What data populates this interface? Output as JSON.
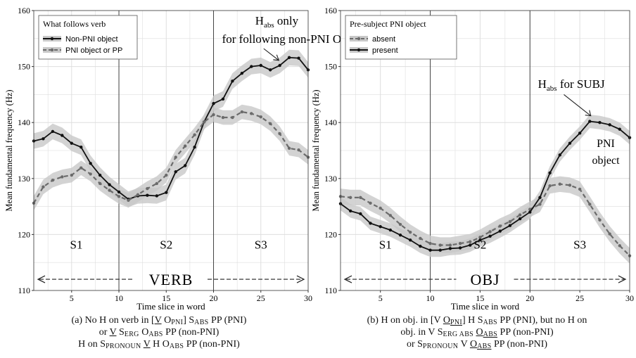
{
  "panels": [
    {
      "id": "a",
      "legend_title": "What follows verb",
      "region_labels": [
        "S1",
        "S2",
        "S3"
      ],
      "word_label": "VERB",
      "annotation": {
        "base": "H",
        "sub": "abs",
        "rest": " only",
        "line2": "for following non-PNI OBJ"
      },
      "caption": [
        [
          {
            "t": "(a) No H on verb in ["
          },
          {
            "t": "V",
            "u": true
          },
          {
            "t": " O"
          },
          {
            "t": "PNI",
            "sc": true,
            "sub": true
          },
          {
            "t": "] S"
          },
          {
            "t": "ABS",
            "sc": true,
            "sub": true
          },
          {
            "t": " PP (PNI)"
          }
        ],
        [
          {
            "t": "or "
          },
          {
            "t": "V",
            "u": true
          },
          {
            "t": " S"
          },
          {
            "t": "ERG",
            "sc": true,
            "sub": true
          },
          {
            "t": " O"
          },
          {
            "t": "ABS",
            "sc": true,
            "sub": true
          },
          {
            "t": " PP (non-PNI)"
          }
        ],
        [
          {
            "t": "H on S"
          },
          {
            "t": "PRONOUN",
            "sc": true,
            "sub": true
          },
          {
            "t": " "
          },
          {
            "t": "V",
            "u": true
          },
          {
            "t": " H O"
          },
          {
            "t": "ABS",
            "sc": true,
            "sub": true
          },
          {
            "t": " PP (non-PNI)"
          }
        ]
      ]
    },
    {
      "id": "b",
      "legend_title": "Pre-subject PNI object",
      "region_labels": [
        "S1",
        "S2",
        "S3"
      ],
      "word_label": "OBJ",
      "annotation": {
        "base": "H",
        "sub": "abs",
        "rest": " for SUBJ",
        "line2": ""
      },
      "extra_label": [
        "PNI",
        "object"
      ],
      "caption": [
        [
          {
            "t": "(b) H on obj. in [V "
          },
          {
            "t": "O",
            "u": true
          },
          {
            "t": "PNI",
            "sc": true,
            "sub": true,
            "u": true
          },
          {
            "t": "] H S"
          },
          {
            "t": "ABS",
            "sc": true,
            "sub": true
          },
          {
            "t": " PP (PNI), but no H on"
          }
        ],
        [
          {
            "t": "obj. in V S"
          },
          {
            "t": "ERG ABS",
            "sc": true,
            "sub": true
          },
          {
            "t": " "
          },
          {
            "t": "O",
            "u": true
          },
          {
            "t": "ABS",
            "sc": true,
            "sub": true,
            "u": true
          },
          {
            "t": " PP (non-PNI)"
          }
        ],
        [
          {
            "t": "or S"
          },
          {
            "t": "PRONOUN",
            "sc": true,
            "sub": true
          },
          {
            "t": " V "
          },
          {
            "t": "O",
            "u": true
          },
          {
            "t": "ABS",
            "sc": true,
            "sub": true,
            "u": true
          },
          {
            "t": " PP (non-PNI)"
          }
        ]
      ]
    }
  ],
  "colors": {
    "solid": "#111111",
    "dashed": "#6b6b6b",
    "band": "#c8c8c8",
    "grid": "#dedede",
    "vline": "#444444"
  },
  "chart_data": [
    {
      "type": "line",
      "xlabel": "Time slice in word",
      "ylabel": "Mean fundamental frequency (Hz)",
      "xlim": [
        1,
        30
      ],
      "ylim": [
        110,
        160
      ],
      "xticks": [
        5,
        10,
        15,
        20,
        25,
        30
      ],
      "yticks": [
        110,
        120,
        130,
        140,
        150,
        160
      ],
      "grid": true,
      "legend_position": "top-left",
      "boundaries": [
        10,
        20
      ],
      "x": [
        1,
        2,
        3,
        4,
        5,
        6,
        7,
        8,
        9,
        10,
        11,
        12,
        13,
        14,
        15,
        16,
        17,
        18,
        19,
        20,
        21,
        22,
        23,
        24,
        25,
        26,
        27,
        28,
        29,
        30
      ],
      "series": [
        {
          "name": "Non-PNI object",
          "style": "solid",
          "values": [
            136.7,
            137.1,
            138.4,
            137.7,
            136.3,
            135.6,
            132.7,
            130.6,
            128.9,
            127.6,
            126.3,
            126.9,
            127.0,
            126.9,
            127.5,
            131.2,
            132.3,
            135.6,
            140.1,
            143.4,
            144.2,
            147.4,
            148.8,
            150.0,
            150.2,
            149.4,
            150.2,
            151.6,
            151.5,
            149.4
          ],
          "band": 1.4
        },
        {
          "name": "PNI object or PP",
          "style": "dashed",
          "values": [
            125.6,
            128.5,
            129.7,
            130.3,
            130.6,
            131.9,
            130.8,
            129.1,
            127.9,
            126.8,
            126.1,
            127.1,
            128.2,
            129.1,
            130.6,
            133.8,
            135.8,
            137.8,
            140.1,
            141.4,
            140.9,
            140.9,
            141.9,
            141.6,
            141.0,
            139.8,
            138.0,
            135.4,
            135.1,
            133.8
          ],
          "band": 1.3
        }
      ]
    },
    {
      "type": "line",
      "xlabel": "Time slice in word",
      "ylabel": "Mean fundamental frequency (Hz)",
      "xlim": [
        1,
        30
      ],
      "ylim": [
        110,
        160
      ],
      "xticks": [
        5,
        10,
        15,
        20,
        25,
        30
      ],
      "yticks": [
        110,
        120,
        130,
        140,
        150,
        160
      ],
      "grid": true,
      "legend_position": "top-left",
      "boundaries": [
        10,
        20
      ],
      "x": [
        1,
        2,
        3,
        4,
        5,
        6,
        7,
        8,
        9,
        10,
        11,
        12,
        13,
        14,
        15,
        16,
        17,
        18,
        19,
        20,
        21,
        22,
        23,
        24,
        25,
        26,
        27,
        28,
        29,
        30
      ],
      "series": [
        {
          "name": "absent",
          "style": "dashed",
          "values": [
            126.8,
            126.6,
            126.6,
            125.6,
            124.7,
            123.4,
            121.8,
            120.4,
            119.3,
            118.4,
            118.1,
            118.1,
            118.4,
            118.7,
            119.5,
            120.5,
            121.5,
            122.3,
            123.5,
            124.5,
            125.4,
            128.7,
            129.0,
            128.8,
            128.1,
            125.4,
            122.6,
            120.1,
            118.0,
            116.2
          ],
          "band": 1.4
        },
        {
          "name": "present",
          "style": "solid",
          "values": [
            125.5,
            124.2,
            123.7,
            122.0,
            121.4,
            120.8,
            119.9,
            119.0,
            117.9,
            117.2,
            117.2,
            117.5,
            117.6,
            118.1,
            119.0,
            119.7,
            120.6,
            121.6,
            122.8,
            124.0,
            126.6,
            131.0,
            134.2,
            136.3,
            138.1,
            140.2,
            140.0,
            139.6,
            138.8,
            137.3
          ],
          "band": 1.2
        }
      ]
    }
  ]
}
